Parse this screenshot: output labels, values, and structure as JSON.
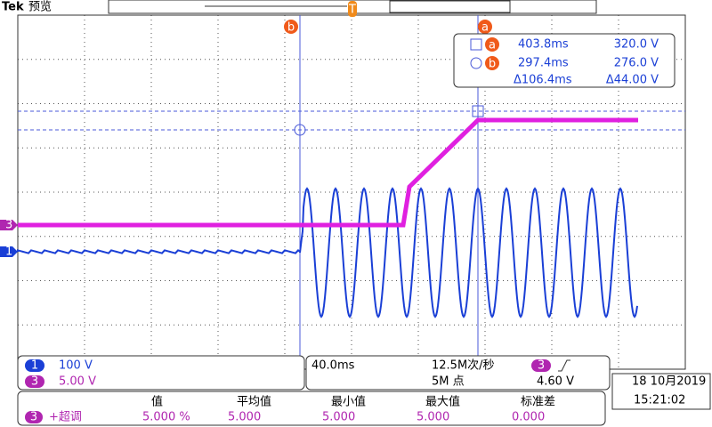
{
  "header": {
    "brand": "Tek",
    "mode": "预览"
  },
  "trigger_marker": "T",
  "cursors": {
    "a": {
      "label": "a",
      "time": "403.8ms",
      "voltage": "320.0 V"
    },
    "b": {
      "label": "b",
      "time": "297.4ms",
      "voltage": "276.0 V"
    },
    "delta": {
      "time": "Δ106.4ms",
      "voltage": "Δ44.00 V"
    }
  },
  "channels": [
    {
      "id": "1",
      "scale": "100 V"
    },
    {
      "id": "3",
      "scale": "5.00 V"
    }
  ],
  "timebase": {
    "scale": "40.0ms",
    "sample_rate": "12.5M次/秒",
    "record_length": "5M 点",
    "trigger_source": "3",
    "trigger_level": "4.60 V"
  },
  "datetime": {
    "date": "18 10月2019",
    "time": "15:21:02"
  },
  "measurements": {
    "headers": [
      "值",
      "平均值",
      "最小值",
      "最大值",
      "标准差"
    ],
    "rows": [
      {
        "source": "3",
        "name": "+超调",
        "cells": [
          "5.000 %",
          "5.000",
          "5.000",
          "5.000",
          "0.000"
        ]
      }
    ]
  }
}
